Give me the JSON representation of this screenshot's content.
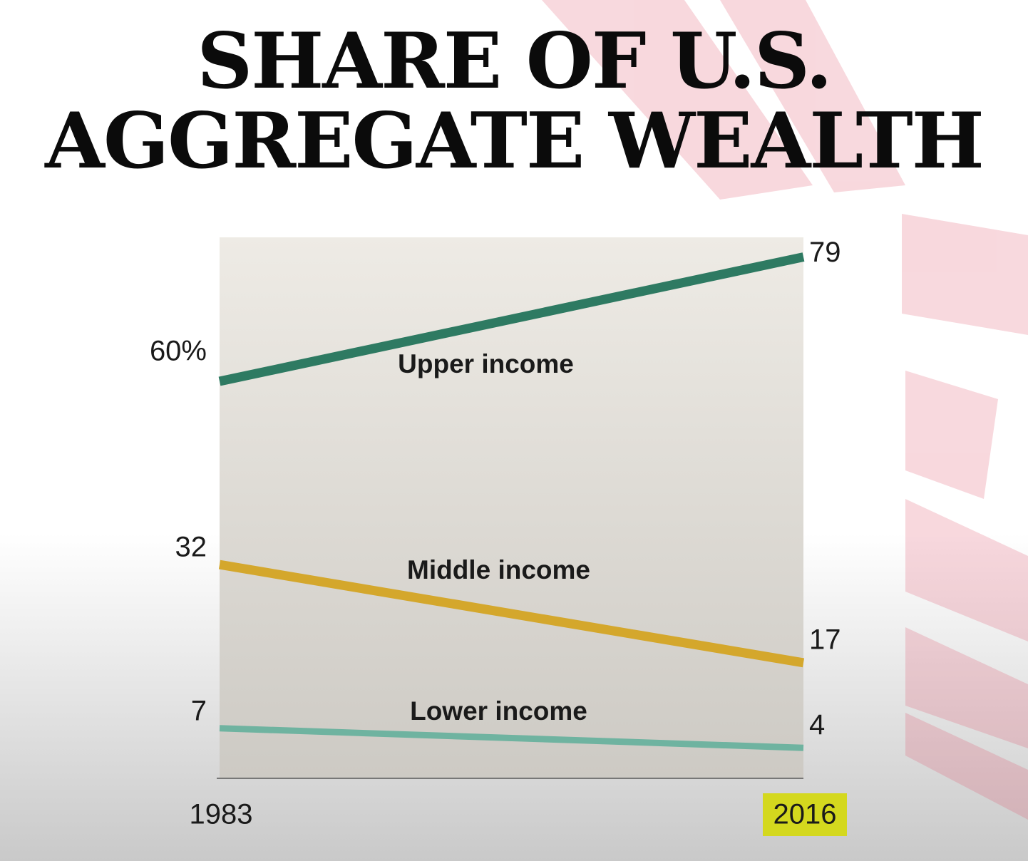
{
  "chart_data": {
    "type": "line",
    "title": "SHARE OF U.S.\nAGGREGATE WEALTH",
    "x": [
      1983,
      2016
    ],
    "xlim": [
      1983,
      2016
    ],
    "ylim": [
      0,
      82
    ],
    "series": [
      {
        "name": "Upper income",
        "color": "#2e7a62",
        "values": [
          60,
          79
        ],
        "value_labels": [
          "60%",
          "79"
        ]
      },
      {
        "name": "Middle income",
        "color": "#d4a72c",
        "values": [
          32,
          17
        ],
        "value_labels": [
          "32",
          "17"
        ]
      },
      {
        "name": "Lower income",
        "color": "#6fb3a0",
        "values": [
          7,
          4
        ],
        "value_labels": [
          "7",
          "4"
        ]
      }
    ]
  }
}
